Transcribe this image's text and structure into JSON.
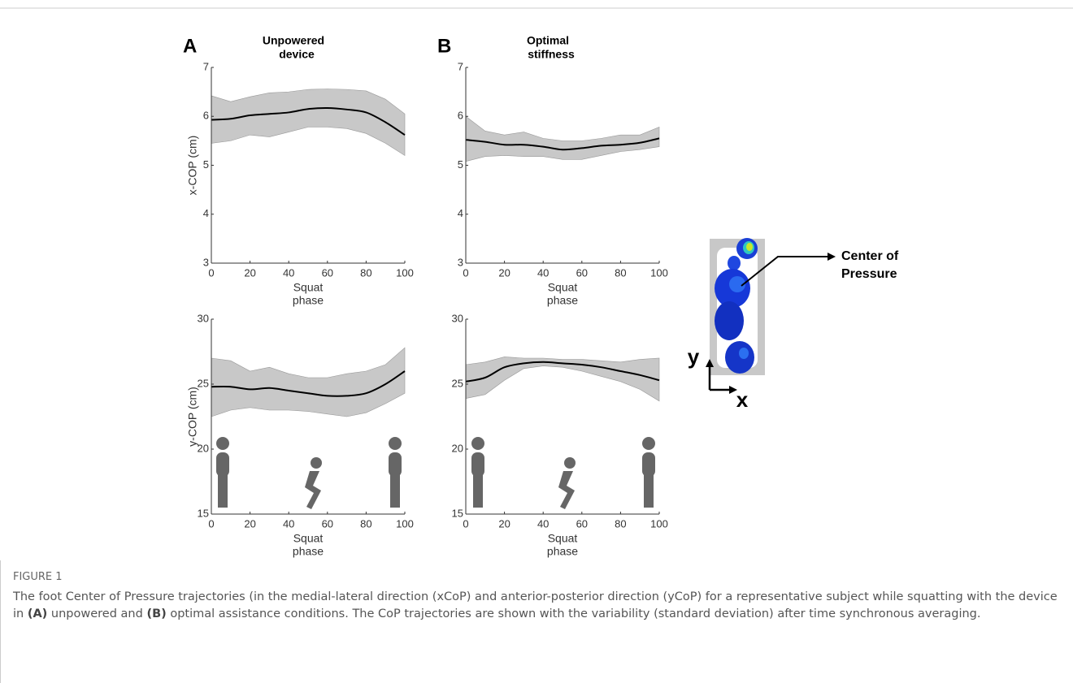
{
  "chart_data": [
    {
      "type": "line",
      "panel": "A",
      "title": [
        "Unpowered",
        "device"
      ],
      "xlabel": [
        "Squat",
        "phase"
      ],
      "ylabel": "x-COP (cm)",
      "xlim": [
        0,
        100
      ],
      "xticks": [
        0,
        20,
        40,
        60,
        80,
        100
      ],
      "ylim": [
        3,
        7
      ],
      "yticks": [
        3,
        4,
        5,
        6,
        7
      ],
      "x": [
        0,
        10,
        20,
        30,
        40,
        50,
        60,
        70,
        80,
        90,
        100
      ],
      "values": [
        5.93,
        5.95,
        6.02,
        6.05,
        6.08,
        6.15,
        6.17,
        6.14,
        6.08,
        5.88,
        5.62
      ],
      "band_upper": [
        6.42,
        6.3,
        6.4,
        6.48,
        6.5,
        6.55,
        6.56,
        6.55,
        6.52,
        6.35,
        6.05
      ],
      "band_lower": [
        5.45,
        5.5,
        5.62,
        5.58,
        5.68,
        5.78,
        5.78,
        5.75,
        5.65,
        5.45,
        5.2
      ],
      "color": "#000000",
      "band_color": "#c8c8c8"
    },
    {
      "type": "line",
      "panel": "B",
      "title": [
        "Optimal",
        "stiffness"
      ],
      "xlabel": [
        "Squat",
        "phase"
      ],
      "xlim": [
        0,
        100
      ],
      "xticks": [
        0,
        20,
        40,
        60,
        80,
        100
      ],
      "ylim": [
        3,
        7
      ],
      "yticks": [
        3,
        4,
        5,
        6,
        7
      ],
      "x": [
        0,
        10,
        20,
        30,
        40,
        50,
        60,
        70,
        80,
        90,
        100
      ],
      "values": [
        5.52,
        5.48,
        5.42,
        5.42,
        5.38,
        5.32,
        5.35,
        5.4,
        5.42,
        5.46,
        5.55
      ],
      "band_upper": [
        6.0,
        5.7,
        5.62,
        5.68,
        5.55,
        5.5,
        5.5,
        5.55,
        5.62,
        5.62,
        5.78
      ],
      "band_lower": [
        5.08,
        5.18,
        5.2,
        5.18,
        5.18,
        5.12,
        5.12,
        5.2,
        5.28,
        5.32,
        5.38
      ],
      "color": "#000000",
      "band_color": "#c8c8c8"
    },
    {
      "type": "line",
      "xlabel": [
        "Squat",
        "phase"
      ],
      "ylabel": "y-COP (cm)",
      "xlim": [
        0,
        100
      ],
      "xticks": [
        0,
        20,
        40,
        60,
        80,
        100
      ],
      "ylim": [
        15,
        30
      ],
      "yticks": [
        15,
        20,
        25,
        30
      ],
      "x": [
        0,
        10,
        20,
        30,
        40,
        50,
        60,
        70,
        80,
        90,
        100
      ],
      "values": [
        24.8,
        24.8,
        24.6,
        24.7,
        24.5,
        24.3,
        24.1,
        24.1,
        24.3,
        25.0,
        26.0
      ],
      "band_upper": [
        27.0,
        26.8,
        26.0,
        26.3,
        25.8,
        25.5,
        25.5,
        25.8,
        26.0,
        26.5,
        27.8
      ],
      "band_lower": [
        22.5,
        23.0,
        23.2,
        23.0,
        23.0,
        22.9,
        22.7,
        22.5,
        22.8,
        23.5,
        24.3
      ],
      "color": "#000000",
      "band_color": "#c8c8c8"
    },
    {
      "type": "line",
      "xlabel": [
        "Squat",
        "phase"
      ],
      "xlim": [
        0,
        100
      ],
      "xticks": [
        0,
        20,
        40,
        60,
        80,
        100
      ],
      "ylim": [
        15,
        30
      ],
      "yticks": [
        15,
        20,
        25,
        30
      ],
      "x": [
        0,
        10,
        20,
        30,
        40,
        50,
        60,
        70,
        80,
        90,
        100
      ],
      "values": [
        25.2,
        25.5,
        26.3,
        26.6,
        26.7,
        26.6,
        26.5,
        26.3,
        26.0,
        25.7,
        25.3
      ],
      "band_upper": [
        26.5,
        26.7,
        27.1,
        27.0,
        27.0,
        26.9,
        26.9,
        26.8,
        26.7,
        26.9,
        27.0
      ],
      "band_lower": [
        23.9,
        24.2,
        25.3,
        26.2,
        26.4,
        26.3,
        26.0,
        25.6,
        25.2,
        24.6,
        23.7
      ],
      "color": "#000000",
      "band_color": "#c8c8c8"
    }
  ],
  "foot_diagram": {
    "label": [
      "Center of",
      "Pressure"
    ],
    "y_axis": "y",
    "x_axis": "x"
  },
  "caption": {
    "label": "FIGURE 1",
    "parts": [
      "The foot Center of Pressure trajectories (in the medial-lateral direction (xCoP) and anterior-posterior direction (yCoP) for a representative subject while squatting with the device in ",
      "(A)",
      " unpowered and ",
      "(B)",
      " optimal assistance conditions. The CoP trajectories are shown with the variability (standard deviation) after time synchronous averaging."
    ]
  }
}
